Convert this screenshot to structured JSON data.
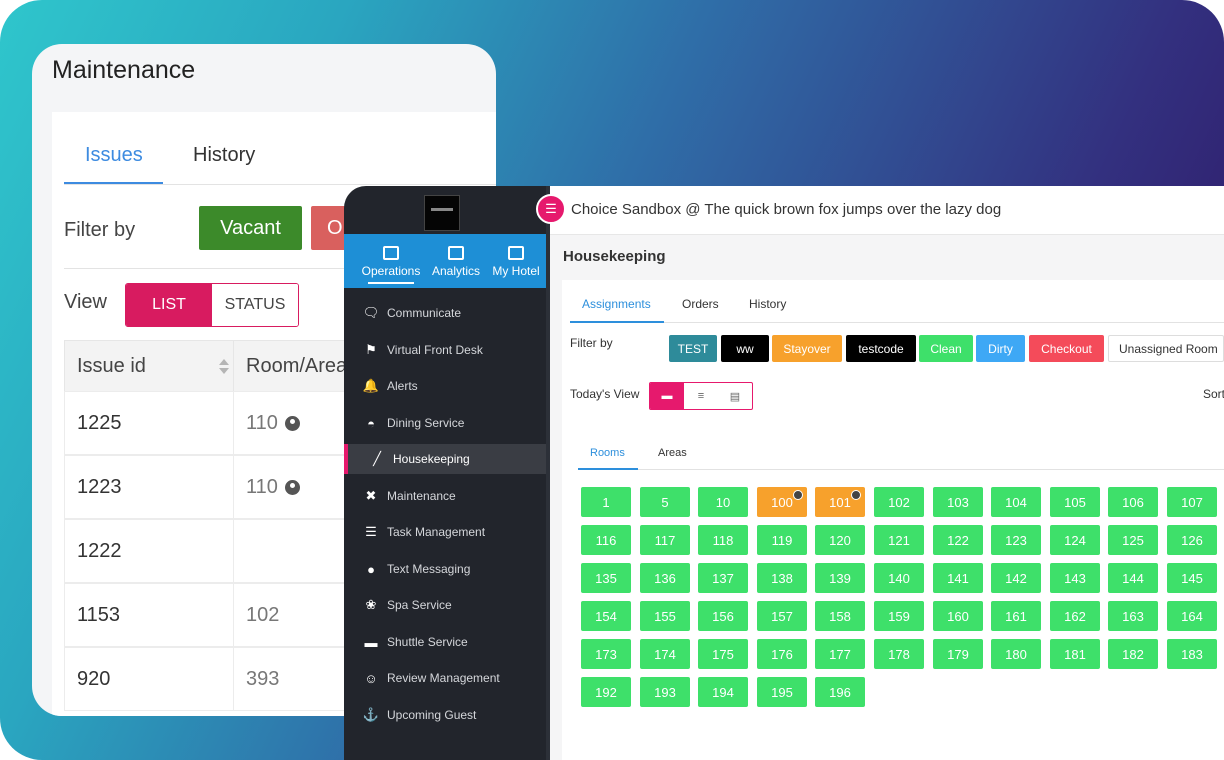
{
  "maintenance": {
    "title": "Maintenance",
    "tabs": [
      "Issues",
      "History"
    ],
    "filter_label": "Filter by",
    "filters": [
      "Vacant",
      "O"
    ],
    "view_label": "View",
    "view_options": [
      "LIST",
      "STATUS"
    ],
    "columns": [
      "Issue id",
      "Room/Area"
    ],
    "rows": [
      {
        "id": "1225",
        "room": "110",
        "occupied": true
      },
      {
        "id": "1223",
        "room": "110",
        "occupied": true
      },
      {
        "id": "1222",
        "room": "",
        "occupied": false
      },
      {
        "id": "1153",
        "room": "102",
        "occupied": false
      },
      {
        "id": "920",
        "room": "393",
        "occupied": false
      }
    ]
  },
  "sidebar": {
    "top_tabs": [
      "Operations",
      "Analytics",
      "My Hotel"
    ],
    "active_top_tab": "Operations",
    "items": [
      {
        "label": "Communicate",
        "icon": "chat-bubbles-icon"
      },
      {
        "label": "Virtual Front Desk",
        "icon": "front-desk-icon"
      },
      {
        "label": "Alerts",
        "icon": "bell-icon"
      },
      {
        "label": "Dining Service",
        "icon": "cloche-icon"
      },
      {
        "label": "Housekeeping",
        "icon": "broom-icon"
      },
      {
        "label": "Maintenance",
        "icon": "tools-icon"
      },
      {
        "label": "Task Management",
        "icon": "task-list-icon"
      },
      {
        "label": "Text Messaging",
        "icon": "message-icon"
      },
      {
        "label": "Spa Service",
        "icon": "spa-icon"
      },
      {
        "label": "Shuttle Service",
        "icon": "bus-icon"
      },
      {
        "label": "Review Management",
        "icon": "reviewer-icon"
      },
      {
        "label": "Upcoming Guest",
        "icon": "walking-guest-icon"
      }
    ],
    "active_item": "Housekeeping"
  },
  "header": {
    "hotel_name": "Choice Sandbox @ The quick brown fox jumps over the lazy dog"
  },
  "housekeeping": {
    "title": "Housekeeping",
    "tabs": [
      "Assignments",
      "Orders",
      "History"
    ],
    "filter_label": "Filter by",
    "filters": [
      {
        "label": "TEST",
        "color": "#2e8b9a"
      },
      {
        "label": "ww",
        "color": "#000000"
      },
      {
        "label": "Stayover",
        "color": "#f7a12c"
      },
      {
        "label": "testcode",
        "color": "#000000"
      },
      {
        "label": "Clean",
        "color": "#3ee06a"
      },
      {
        "label": "Dirty",
        "color": "#3ea8f5"
      },
      {
        "label": "Checkout",
        "color": "#f44b5a"
      },
      {
        "label": "Unassigned Room",
        "color": "#ffffff"
      }
    ],
    "today_view_label": "Today's View",
    "sort_label": "Sort",
    "room_tabs": [
      "Rooms",
      "Areas"
    ],
    "rooms": [
      {
        "num": "1",
        "status": "clean"
      },
      {
        "num": "5",
        "status": "clean"
      },
      {
        "num": "10",
        "status": "clean"
      },
      {
        "num": "100",
        "status": "stayover",
        "occupied": true
      },
      {
        "num": "101",
        "status": "stayover",
        "occupied": true
      },
      {
        "num": "102",
        "status": "clean"
      },
      {
        "num": "103",
        "status": "clean"
      },
      {
        "num": "104",
        "status": "clean"
      },
      {
        "num": "105",
        "status": "clean"
      },
      {
        "num": "106",
        "status": "clean"
      },
      {
        "num": "107",
        "status": "clean"
      },
      {
        "num": "116",
        "status": "clean"
      },
      {
        "num": "117",
        "status": "clean"
      },
      {
        "num": "118",
        "status": "clean"
      },
      {
        "num": "119",
        "status": "clean"
      },
      {
        "num": "120",
        "status": "clean"
      },
      {
        "num": "121",
        "status": "clean"
      },
      {
        "num": "122",
        "status": "clean"
      },
      {
        "num": "123",
        "status": "clean"
      },
      {
        "num": "124",
        "status": "clean"
      },
      {
        "num": "125",
        "status": "clean"
      },
      {
        "num": "126",
        "status": "clean"
      },
      {
        "num": "135",
        "status": "clean"
      },
      {
        "num": "136",
        "status": "clean"
      },
      {
        "num": "137",
        "status": "clean"
      },
      {
        "num": "138",
        "status": "clean"
      },
      {
        "num": "139",
        "status": "clean"
      },
      {
        "num": "140",
        "status": "clean"
      },
      {
        "num": "141",
        "status": "clean"
      },
      {
        "num": "142",
        "status": "clean"
      },
      {
        "num": "143",
        "status": "clean"
      },
      {
        "num": "144",
        "status": "clean"
      },
      {
        "num": "145",
        "status": "clean"
      },
      {
        "num": "154",
        "status": "clean"
      },
      {
        "num": "155",
        "status": "clean"
      },
      {
        "num": "156",
        "status": "clean"
      },
      {
        "num": "157",
        "status": "clean"
      },
      {
        "num": "158",
        "status": "clean"
      },
      {
        "num": "159",
        "status": "clean"
      },
      {
        "num": "160",
        "status": "clean"
      },
      {
        "num": "161",
        "status": "clean"
      },
      {
        "num": "162",
        "status": "clean"
      },
      {
        "num": "163",
        "status": "clean"
      },
      {
        "num": "164",
        "status": "clean"
      },
      {
        "num": "173",
        "status": "clean"
      },
      {
        "num": "174",
        "status": "clean"
      },
      {
        "num": "175",
        "status": "clean"
      },
      {
        "num": "176",
        "status": "clean"
      },
      {
        "num": "177",
        "status": "clean"
      },
      {
        "num": "178",
        "status": "clean"
      },
      {
        "num": "179",
        "status": "clean"
      },
      {
        "num": "180",
        "status": "clean"
      },
      {
        "num": "181",
        "status": "clean"
      },
      {
        "num": "182",
        "status": "clean"
      },
      {
        "num": "183",
        "status": "clean"
      },
      {
        "num": "192",
        "status": "clean"
      },
      {
        "num": "193",
        "status": "clean"
      },
      {
        "num": "194",
        "status": "clean"
      },
      {
        "num": "195",
        "status": "clean"
      },
      {
        "num": "196",
        "status": "clean"
      }
    ]
  },
  "colors": {
    "accent": "#e6196d",
    "tab_blue": "#2d8fdc",
    "clean_green": "#3ee06a",
    "stayover_orange": "#f7a12c"
  }
}
